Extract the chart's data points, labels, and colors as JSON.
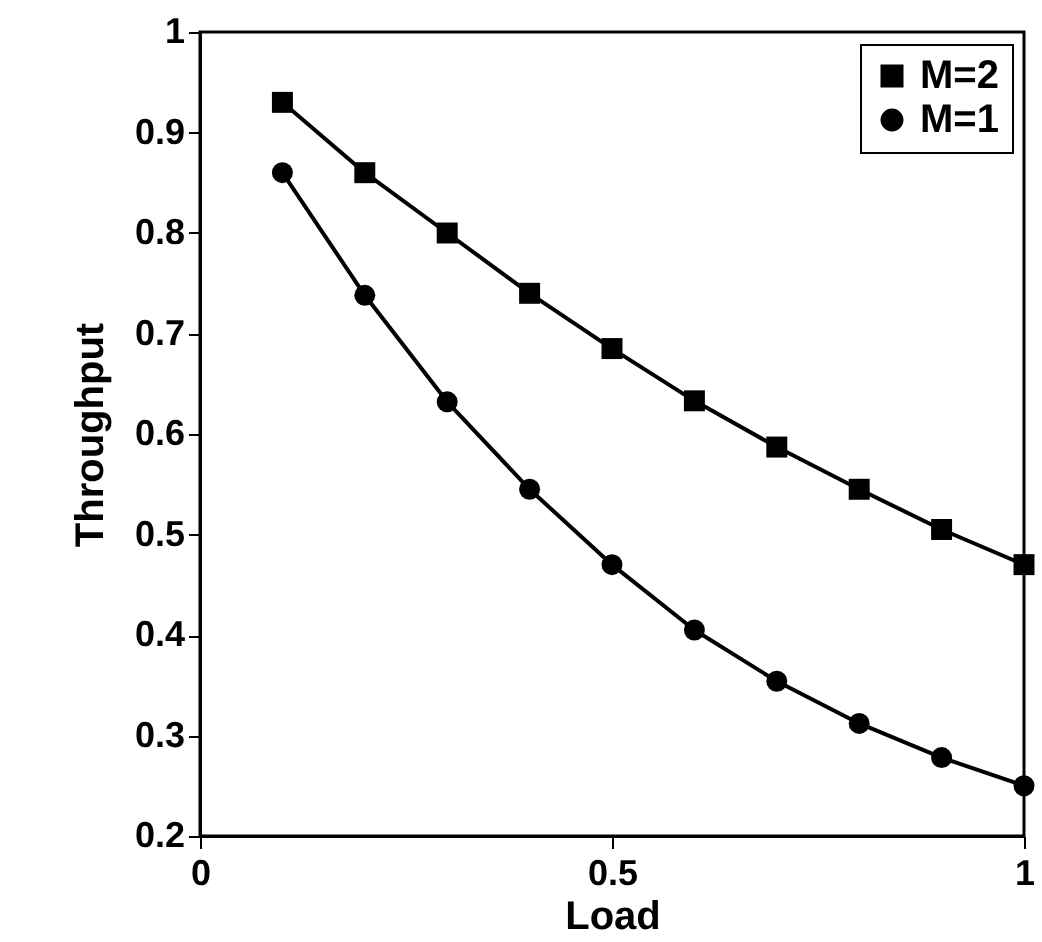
{
  "chart_data": {
    "type": "line",
    "xlabel": "Load",
    "ylabel": "Throughput",
    "x": [
      0.1,
      0.2,
      0.3,
      0.4,
      0.5,
      0.6,
      0.7,
      0.8,
      0.9,
      1.0
    ],
    "series": [
      {
        "name": "M=2",
        "color": "#000000",
        "marker": "square",
        "values": [
          0.93,
          0.86,
          0.8,
          0.74,
          0.685,
          0.633,
          0.587,
          0.545,
          0.505,
          0.47
        ]
      },
      {
        "name": "M=1",
        "color": "#000000",
        "marker": "circle",
        "values": [
          0.86,
          0.738,
          0.632,
          0.545,
          0.47,
          0.405,
          0.354,
          0.312,
          0.278,
          0.25
        ]
      }
    ],
    "xlim": [
      0,
      1
    ],
    "xticks": [
      0,
      0.5,
      1
    ],
    "ylim": [
      0.2,
      1
    ],
    "yticks": [
      0.2,
      0.3,
      0.4,
      0.5,
      0.6,
      0.7,
      0.8,
      0.9,
      1
    ],
    "grid": false,
    "legend": "top right",
    "line_style": "solid"
  }
}
